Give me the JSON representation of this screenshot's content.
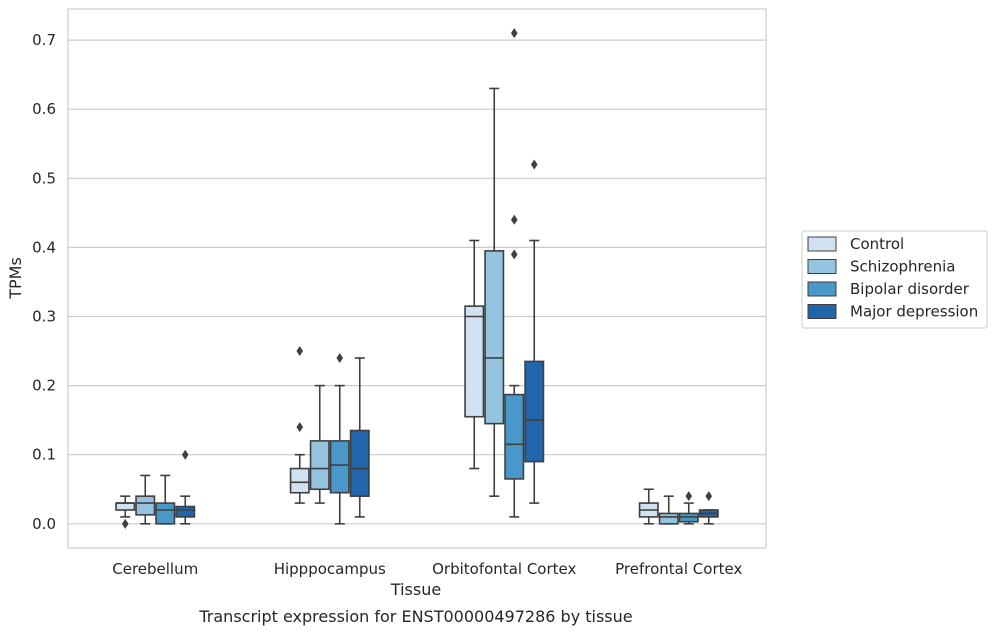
{
  "chart_data": {
    "type": "box",
    "title": "",
    "caption": "Transcript expression for ENST00000497286 by tissue",
    "xlabel": "Tissue",
    "ylabel": "TPMs",
    "ylim": [
      -0.035,
      0.745
    ],
    "yticks": [
      0.0,
      0.1,
      0.2,
      0.3,
      0.4,
      0.5,
      0.6,
      0.7
    ],
    "ytick_labels": [
      "0.0",
      "0.1",
      "0.2",
      "0.3",
      "0.4",
      "0.5",
      "0.6",
      "0.7"
    ],
    "grid": "horizontal",
    "legend_position": "right",
    "categories": [
      "Cerebellum",
      "Hipppocampus",
      "Orbitofontal Cortex",
      "Prefrontal Cortex"
    ],
    "series": [
      {
        "name": "Control",
        "color": "#d0e1f2",
        "boxes": [
          {
            "whislo": 0.01,
            "q1": 0.02,
            "med": 0.03,
            "q3": 0.03,
            "whishi": 0.04,
            "fliers": [
              0.0
            ]
          },
          {
            "whislo": 0.03,
            "q1": 0.045,
            "med": 0.06,
            "q3": 0.08,
            "whishi": 0.1,
            "fliers": [
              0.14,
              0.25
            ]
          },
          {
            "whislo": 0.08,
            "q1": 0.155,
            "med": 0.3,
            "q3": 0.315,
            "whishi": 0.41,
            "fliers": []
          },
          {
            "whislo": 0.0,
            "q1": 0.01,
            "med": 0.02,
            "q3": 0.03,
            "whishi": 0.05,
            "fliers": []
          }
        ]
      },
      {
        "name": "Schizophrenia",
        "color": "#94c4df",
        "boxes": [
          {
            "whislo": 0.0,
            "q1": 0.013,
            "med": 0.03,
            "q3": 0.04,
            "whishi": 0.07,
            "fliers": []
          },
          {
            "whislo": 0.03,
            "q1": 0.05,
            "med": 0.08,
            "q3": 0.12,
            "whishi": 0.2,
            "fliers": []
          },
          {
            "whislo": 0.04,
            "q1": 0.145,
            "med": 0.24,
            "q3": 0.395,
            "whishi": 0.63,
            "fliers": []
          },
          {
            "whislo": 0.0,
            "q1": 0.0,
            "med": 0.01,
            "q3": 0.015,
            "whishi": 0.04,
            "fliers": []
          }
        ]
      },
      {
        "name": "Bipolar disorder",
        "color": "#4a98c9",
        "boxes": [
          {
            "whislo": 0.0,
            "q1": 0.0,
            "med": 0.02,
            "q3": 0.03,
            "whishi": 0.07,
            "fliers": []
          },
          {
            "whislo": 0.0,
            "q1": 0.045,
            "med": 0.085,
            "q3": 0.12,
            "whishi": 0.2,
            "fliers": [
              0.24
            ]
          },
          {
            "whislo": 0.01,
            "q1": 0.065,
            "med": 0.115,
            "q3": 0.187,
            "whishi": 0.2,
            "fliers": [
              0.39,
              0.44,
              0.71
            ]
          },
          {
            "whislo": 0.0,
            "q1": 0.003,
            "med": 0.01,
            "q3": 0.015,
            "whishi": 0.03,
            "fliers": [
              0.04
            ]
          }
        ]
      },
      {
        "name": "Major depression",
        "color": "#2166ac",
        "boxes": [
          {
            "whislo": 0.0,
            "q1": 0.01,
            "med": 0.02,
            "q3": 0.025,
            "whishi": 0.04,
            "fliers": [
              0.1
            ]
          },
          {
            "whislo": 0.01,
            "q1": 0.04,
            "med": 0.08,
            "q3": 0.135,
            "whishi": 0.24,
            "fliers": []
          },
          {
            "whislo": 0.03,
            "q1": 0.09,
            "med": 0.15,
            "q3": 0.235,
            "whishi": 0.41,
            "fliers": [
              0.52
            ]
          },
          {
            "whislo": 0.0,
            "q1": 0.01,
            "med": 0.015,
            "q3": 0.02,
            "whishi": 0.02,
            "fliers": [
              0.04
            ]
          }
        ]
      }
    ]
  }
}
